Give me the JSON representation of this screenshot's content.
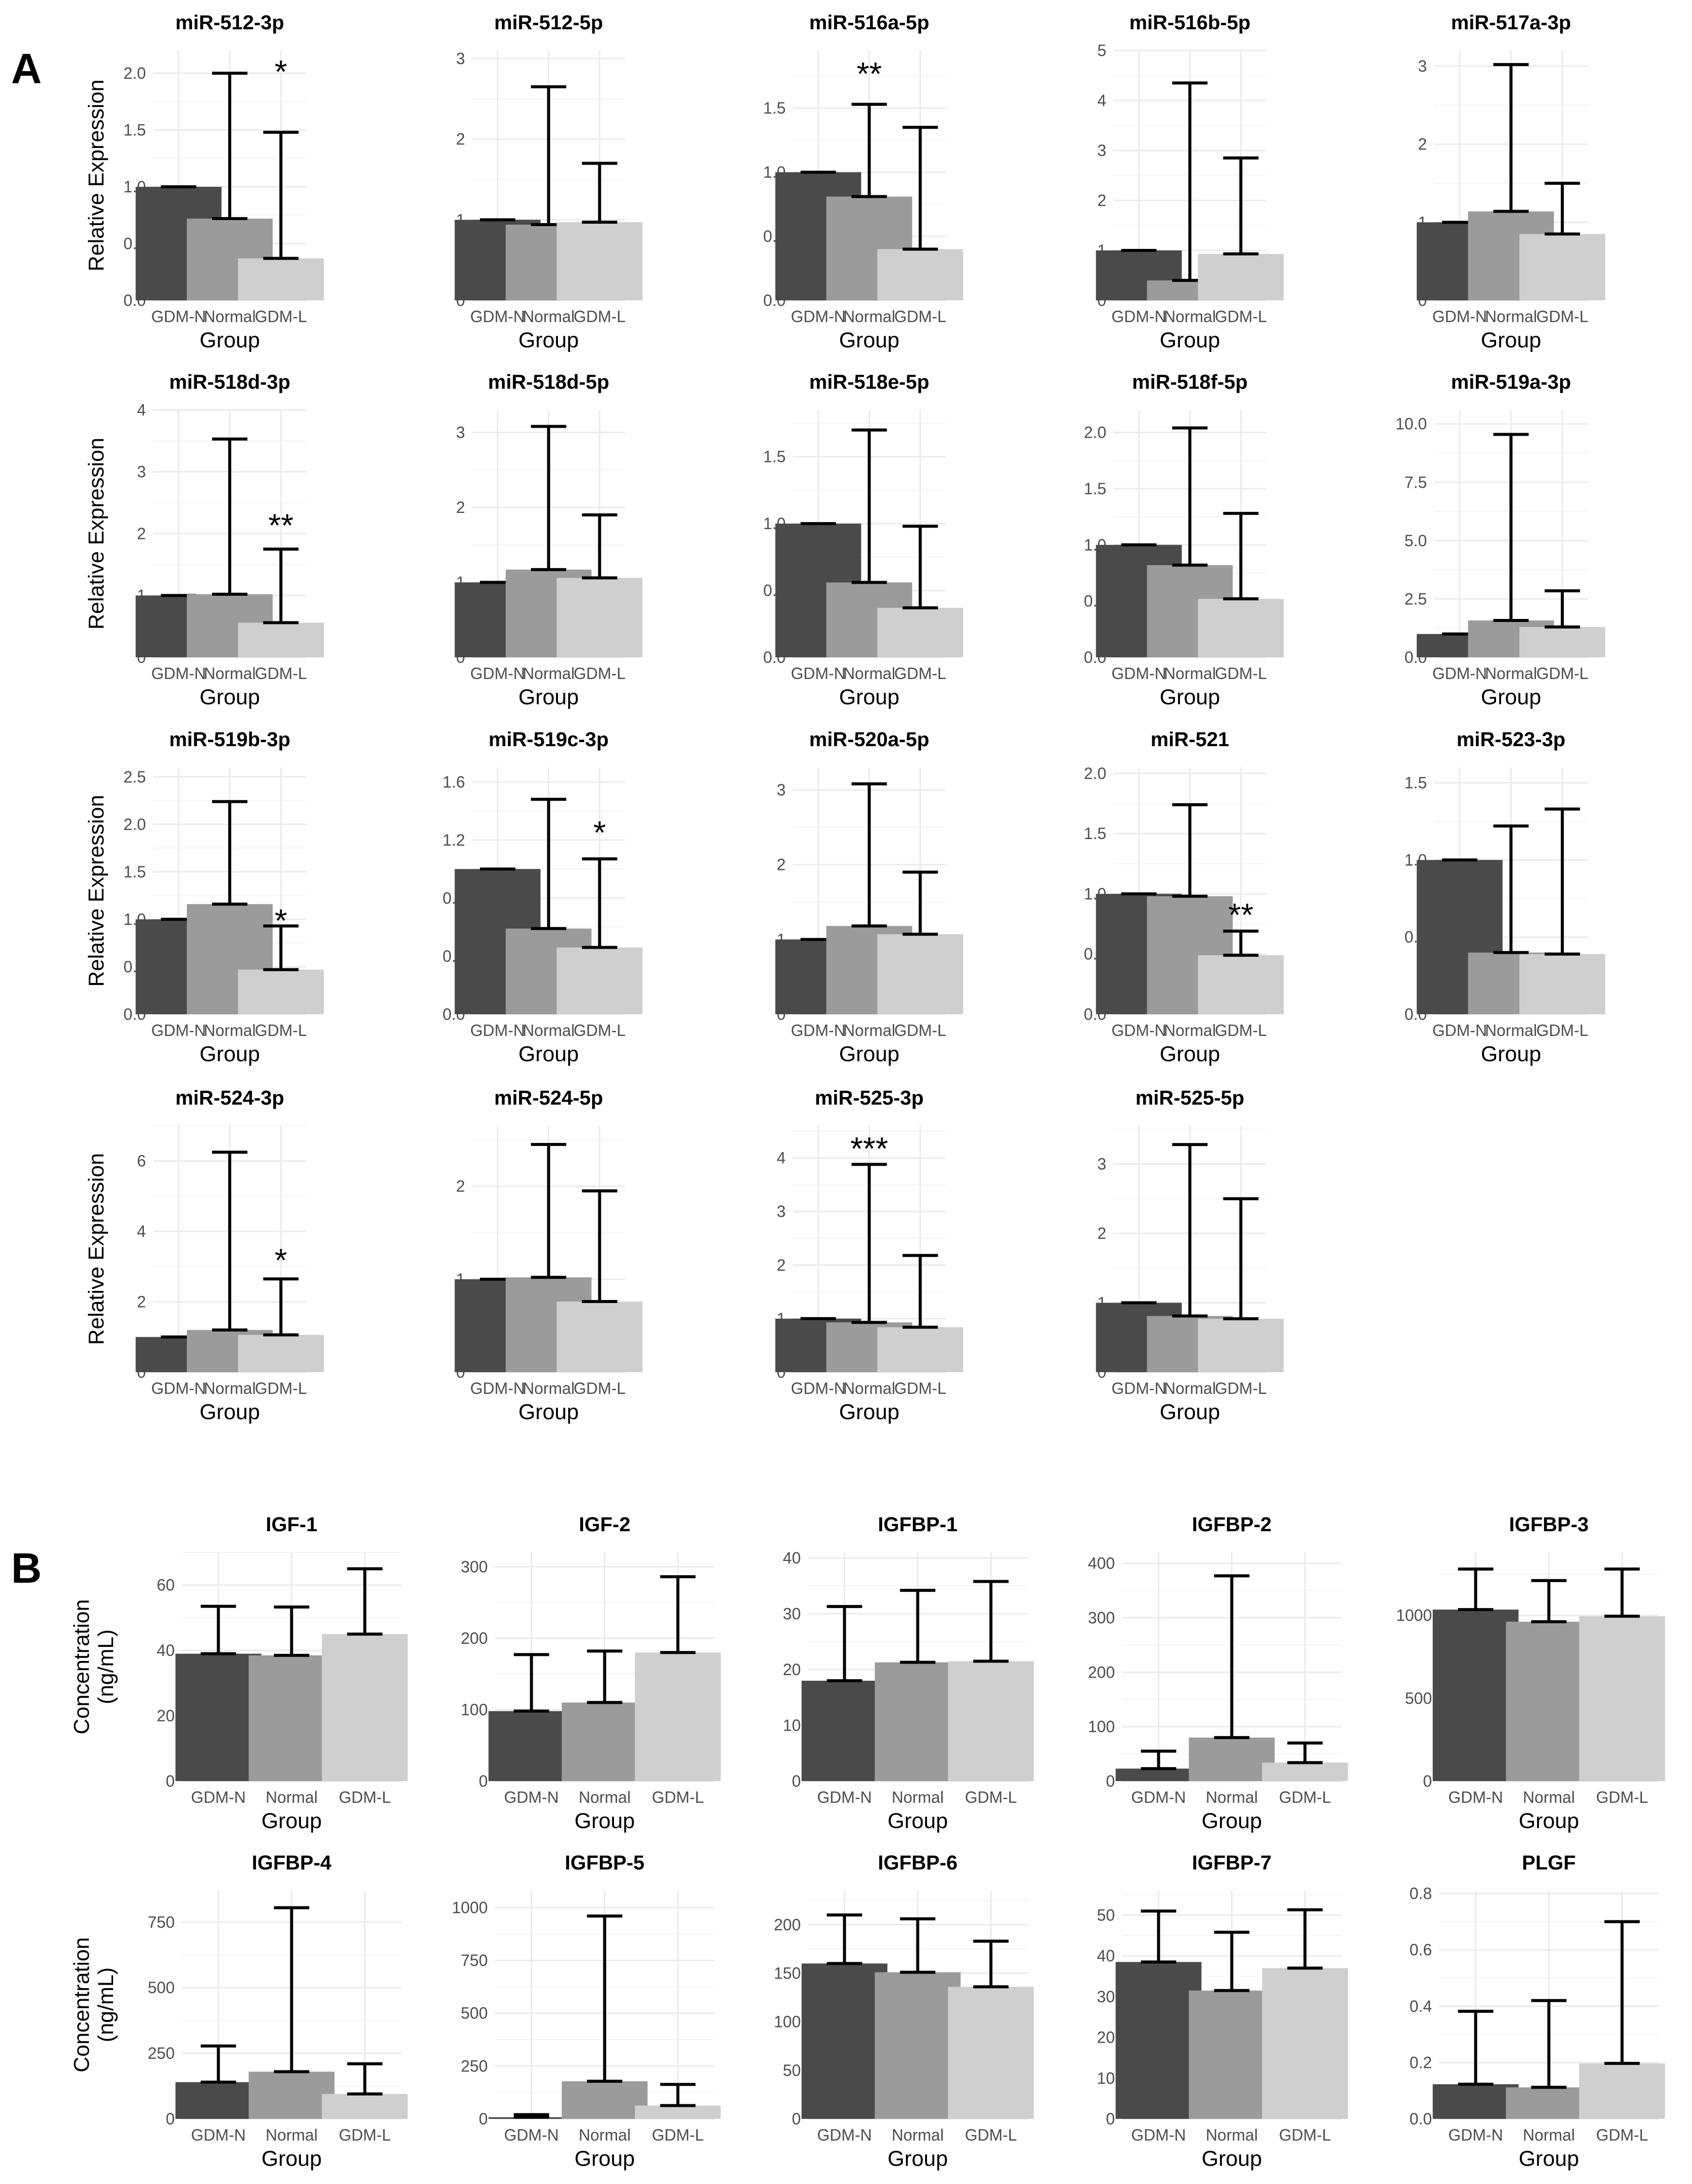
{
  "panel_labels": [
    "A",
    "B"
  ],
  "chart_data": [
    {
      "type": "bar",
      "panel": "A",
      "title": "miR-512-3p",
      "categories": [
        "GDM-N",
        "Normal",
        "GDM-L"
      ],
      "values": [
        1.0,
        0.72,
        0.37
      ],
      "error_upper": [
        1.0,
        2.0,
        1.48
      ],
      "ylim": [
        0,
        2.2
      ],
      "yticks": [
        "0.0",
        "0.5",
        "1.0",
        "1.5",
        "2.0"
      ],
      "xlabel": "Group",
      "ylabel": "Relative Expression",
      "annotations": [
        {
          "category": "GDM-L",
          "text": "*",
          "y": 2.05
        }
      ]
    },
    {
      "type": "bar",
      "panel": "A",
      "title": "miR-512-5p",
      "categories": [
        "GDM-N",
        "Normal",
        "GDM-L"
      ],
      "values": [
        1.0,
        0.94,
        0.97
      ],
      "error_upper": [
        1.0,
        2.65,
        1.7
      ],
      "ylim": [
        0,
        3.1
      ],
      "yticks": [
        "0",
        "1",
        "2",
        "3"
      ],
      "xlabel": "Group",
      "ylabel": "",
      "annotations": []
    },
    {
      "type": "bar",
      "panel": "A",
      "title": "miR-516a-5p",
      "categories": [
        "GDM-N",
        "Normal",
        "GDM-L"
      ],
      "values": [
        1.0,
        0.81,
        0.4
      ],
      "error_upper": [
        1.0,
        1.53,
        1.35
      ],
      "ylim": [
        0,
        1.95
      ],
      "yticks": [
        "0.0",
        "0.5",
        "1.0",
        "1.5"
      ],
      "xlabel": "Group",
      "ylabel": "",
      "annotations": [
        {
          "category": "Normal",
          "text": "**",
          "y": 1.8
        }
      ]
    },
    {
      "type": "bar",
      "panel": "A",
      "title": "miR-516b-5p",
      "categories": [
        "GDM-N",
        "Normal",
        "GDM-L"
      ],
      "values": [
        1.0,
        0.4,
        0.93
      ],
      "error_upper": [
        1.0,
        4.35,
        2.85
      ],
      "ylim": [
        0,
        5.0
      ],
      "yticks": [
        "0",
        "1",
        "2",
        "3",
        "4",
        "5"
      ],
      "xlabel": "Group",
      "ylabel": "",
      "annotations": []
    },
    {
      "type": "bar",
      "panel": "A",
      "title": "miR-517a-3p",
      "categories": [
        "GDM-N",
        "Normal",
        "GDM-L"
      ],
      "values": [
        1.0,
        1.14,
        0.85
      ],
      "error_upper": [
        1.0,
        3.02,
        1.5
      ],
      "ylim": [
        0,
        3.2
      ],
      "yticks": [
        "0",
        "1",
        "2",
        "3"
      ],
      "xlabel": "Group",
      "ylabel": "",
      "annotations": []
    },
    {
      "type": "bar",
      "panel": "A",
      "title": "miR-518d-3p",
      "categories": [
        "GDM-N",
        "Normal",
        "GDM-L"
      ],
      "values": [
        1.0,
        1.02,
        0.56
      ],
      "error_upper": [
        1.0,
        3.53,
        1.75
      ],
      "ylim": [
        0,
        4.0
      ],
      "yticks": [
        "0",
        "1",
        "2",
        "3",
        "4"
      ],
      "xlabel": "Group",
      "ylabel": "Relative Expression",
      "annotations": [
        {
          "category": "GDM-L",
          "text": "**",
          "y": 2.2
        }
      ]
    },
    {
      "type": "bar",
      "panel": "A",
      "title": "miR-518d-5p",
      "categories": [
        "GDM-N",
        "Normal",
        "GDM-L"
      ],
      "values": [
        1.0,
        1.17,
        1.06
      ],
      "error_upper": [
        1.0,
        3.08,
        1.9
      ],
      "ylim": [
        0,
        3.3
      ],
      "yticks": [
        "0",
        "1",
        "2",
        "3"
      ],
      "xlabel": "Group",
      "ylabel": "",
      "annotations": []
    },
    {
      "type": "bar",
      "panel": "A",
      "title": "miR-518e-5p",
      "categories": [
        "GDM-N",
        "Normal",
        "GDM-L"
      ],
      "values": [
        1.0,
        0.56,
        0.37
      ],
      "error_upper": [
        1.0,
        1.7,
        0.98
      ],
      "ylim": [
        0,
        1.85
      ],
      "yticks": [
        "0.0",
        "0.5",
        "1.0",
        "1.5"
      ],
      "xlabel": "Group",
      "ylabel": "",
      "annotations": []
    },
    {
      "type": "bar",
      "panel": "A",
      "title": "miR-518f-5p",
      "categories": [
        "GDM-N",
        "Normal",
        "GDM-L"
      ],
      "values": [
        1.0,
        0.82,
        0.52
      ],
      "error_upper": [
        1.0,
        2.04,
        1.28
      ],
      "ylim": [
        0,
        2.2
      ],
      "yticks": [
        "0.0",
        "0.5",
        "1.0",
        "1.5",
        "2.0"
      ],
      "xlabel": "Group",
      "ylabel": "",
      "annotations": []
    },
    {
      "type": "bar",
      "panel": "A",
      "title": "miR-519a-3p",
      "categories": [
        "GDM-N",
        "Normal",
        "GDM-L"
      ],
      "values": [
        1.0,
        1.58,
        1.3
      ],
      "error_upper": [
        1.0,
        9.55,
        2.85
      ],
      "ylim": [
        0,
        10.6
      ],
      "yticks": [
        "0.0",
        "2.5",
        "5.0",
        "7.5",
        "10.0"
      ],
      "xlabel": "Group",
      "ylabel": "",
      "annotations": []
    },
    {
      "type": "bar",
      "panel": "A",
      "title": "miR-519b-3p",
      "categories": [
        "GDM-N",
        "Normal",
        "GDM-L"
      ],
      "values": [
        1.0,
        1.16,
        0.47
      ],
      "error_upper": [
        1.0,
        2.24,
        0.93
      ],
      "ylim": [
        0,
        2.6
      ],
      "yticks": [
        "0.0",
        "0.5",
        "1.0",
        "1.5",
        "2.0",
        "2.5"
      ],
      "xlabel": "Group",
      "ylabel": "Relative Expression",
      "annotations": [
        {
          "category": "GDM-L",
          "text": "*",
          "y": 1.03
        }
      ]
    },
    {
      "type": "bar",
      "panel": "A",
      "title": "miR-519c-3p",
      "categories": [
        "GDM-N",
        "Normal",
        "GDM-L"
      ],
      "values": [
        1.0,
        0.59,
        0.46
      ],
      "error_upper": [
        1.0,
        1.48,
        1.07
      ],
      "ylim": [
        0,
        1.7
      ],
      "yticks": [
        "0.0",
        "0.4",
        "0.8",
        "1.2",
        "1.6"
      ],
      "xlabel": "Group",
      "ylabel": "",
      "annotations": [
        {
          "category": "GDM-L",
          "text": "*",
          "y": 1.28
        }
      ]
    },
    {
      "type": "bar",
      "panel": "A",
      "title": "miR-520a-5p",
      "categories": [
        "GDM-N",
        "Normal",
        "GDM-L"
      ],
      "values": [
        1.0,
        1.18,
        1.07
      ],
      "error_upper": [
        1.0,
        3.08,
        1.9
      ],
      "ylim": [
        0,
        3.3
      ],
      "yticks": [
        "0",
        "1",
        "2",
        "3"
      ],
      "xlabel": "Group",
      "ylabel": "",
      "annotations": []
    },
    {
      "type": "bar",
      "panel": "A",
      "title": "miR-521",
      "categories": [
        "GDM-N",
        "Normal",
        "GDM-L"
      ],
      "values": [
        1.0,
        0.98,
        0.49
      ],
      "error_upper": [
        1.0,
        1.74,
        0.69
      ],
      "ylim": [
        0,
        2.05
      ],
      "yticks": [
        "0.0",
        "0.5",
        "1.0",
        "1.5",
        "2.0"
      ],
      "xlabel": "Group",
      "ylabel": "",
      "annotations": [
        {
          "category": "GDM-L",
          "text": "**",
          "y": 0.86
        }
      ]
    },
    {
      "type": "bar",
      "panel": "A",
      "title": "miR-523-3p",
      "categories": [
        "GDM-N",
        "Normal",
        "GDM-L"
      ],
      "values": [
        1.0,
        0.4,
        0.39
      ],
      "error_upper": [
        1.0,
        1.22,
        1.33
      ],
      "ylim": [
        0,
        1.6
      ],
      "yticks": [
        "0.0",
        "0.5",
        "1.0",
        "1.5"
      ],
      "xlabel": "Group",
      "ylabel": "",
      "annotations": []
    },
    {
      "type": "bar",
      "panel": "A",
      "title": "miR-524-3p",
      "categories": [
        "GDM-N",
        "Normal",
        "GDM-L"
      ],
      "values": [
        1.0,
        1.2,
        1.06
      ],
      "error_upper": [
        1.0,
        6.25,
        2.65
      ],
      "ylim": [
        0,
        7.0
      ],
      "yticks": [
        "0",
        "2",
        "4",
        "6"
      ],
      "xlabel": "Group",
      "ylabel": "Relative Expression",
      "annotations": [
        {
          "category": "GDM-L",
          "text": "*",
          "y": 3.3
        }
      ]
    },
    {
      "type": "bar",
      "panel": "A",
      "title": "miR-524-5p",
      "categories": [
        "GDM-N",
        "Normal",
        "GDM-L"
      ],
      "values": [
        1.0,
        1.02,
        0.76
      ],
      "error_upper": [
        1.0,
        2.45,
        1.95
      ],
      "ylim": [
        0,
        2.65
      ],
      "yticks": [
        "0",
        "1",
        "2"
      ],
      "xlabel": "Group",
      "ylabel": "",
      "annotations": []
    },
    {
      "type": "bar",
      "panel": "A",
      "title": "miR-525-3p",
      "categories": [
        "GDM-N",
        "Normal",
        "GDM-L"
      ],
      "values": [
        1.0,
        0.93,
        0.84
      ],
      "error_upper": [
        1.0,
        3.88,
        2.18
      ],
      "ylim": [
        0,
        4.6
      ],
      "yticks": [
        "0",
        "1",
        "2",
        "3",
        "4"
      ],
      "xlabel": "Group",
      "ylabel": "",
      "annotations": [
        {
          "category": "Normal",
          "text": "***",
          "y": 4.25
        }
      ]
    },
    {
      "type": "bar",
      "panel": "A",
      "title": "miR-525-5p",
      "categories": [
        "GDM-N",
        "Normal",
        "GDM-L"
      ],
      "values": [
        1.0,
        0.81,
        0.77
      ],
      "error_upper": [
        1.0,
        3.28,
        2.5
      ],
      "ylim": [
        0,
        3.55
      ],
      "yticks": [
        "0",
        "1",
        "2",
        "3"
      ],
      "xlabel": "Group",
      "ylabel": "",
      "annotations": []
    },
    {
      "type": "bar",
      "panel": "B",
      "title": "IGF-1",
      "categories": [
        "GDM-N",
        "Normal",
        "GDM-L"
      ],
      "values": [
        39,
        38.5,
        45
      ],
      "error_upper": [
        53.5,
        53.3,
        65
      ],
      "ylim": [
        0,
        70
      ],
      "yticks": [
        "0",
        "20",
        "40",
        "60"
      ],
      "xlabel": "Group",
      "ylabel": "Concentration\n(ng/mL)",
      "annotations": []
    },
    {
      "type": "bar",
      "panel": "B",
      "title": "IGF-2",
      "categories": [
        "GDM-N",
        "Normal",
        "GDM-L"
      ],
      "values": [
        98,
        110,
        180
      ],
      "error_upper": [
        177,
        182,
        286
      ],
      "ylim": [
        0,
        320
      ],
      "yticks": [
        "0",
        "100",
        "200",
        "300"
      ],
      "xlabel": "Group",
      "ylabel": "",
      "annotations": []
    },
    {
      "type": "bar",
      "panel": "B",
      "title": "IGFBP-1",
      "categories": [
        "GDM-N",
        "Normal",
        "GDM-L"
      ],
      "values": [
        18,
        21.3,
        21.5
      ],
      "error_upper": [
        31.3,
        34.2,
        35.8
      ],
      "ylim": [
        0,
        41
      ],
      "yticks": [
        "0",
        "10",
        "20",
        "30",
        "40"
      ],
      "xlabel": "Group",
      "ylabel": "",
      "annotations": []
    },
    {
      "type": "bar",
      "panel": "B",
      "title": "IGFBP-2",
      "categories": [
        "GDM-N",
        "Normal",
        "GDM-L"
      ],
      "values": [
        23,
        80,
        34
      ],
      "error_upper": [
        55,
        377,
        70
      ],
      "ylim": [
        0,
        420
      ],
      "yticks": [
        "0",
        "100",
        "200",
        "300",
        "400"
      ],
      "xlabel": "Group",
      "ylabel": "",
      "annotations": []
    },
    {
      "type": "bar",
      "panel": "B",
      "title": "IGFBP-3",
      "categories": [
        "GDM-N",
        "Normal",
        "GDM-L"
      ],
      "values": [
        1035,
        962,
        995
      ],
      "error_upper": [
        1280,
        1210,
        1280
      ],
      "ylim": [
        0,
        1380
      ],
      "yticks": [
        "0",
        "500",
        "1000"
      ],
      "xlabel": "Group",
      "ylabel": "",
      "annotations": []
    },
    {
      "type": "bar",
      "panel": "B",
      "title": "IGFBP-4",
      "categories": [
        "GDM-N",
        "Normal",
        "GDM-L"
      ],
      "values": [
        140,
        180,
        95
      ],
      "error_upper": [
        278,
        805,
        210
      ],
      "ylim": [
        0,
        870
      ],
      "yticks": [
        "0",
        "250",
        "500",
        "750"
      ],
      "xlabel": "Group",
      "ylabel": "Concentration\n(ng/mL)",
      "annotations": []
    },
    {
      "type": "bar",
      "panel": "B",
      "title": "IGFBP-5",
      "categories": [
        "GDM-N",
        "Normal",
        "GDM-L"
      ],
      "values": [
        8,
        178,
        63
      ],
      "error_upper": [
        20,
        960,
        163
      ],
      "ylim": [
        0,
        1080
      ],
      "yticks": [
        "0",
        "250",
        "500",
        "750",
        "1000"
      ],
      "xlabel": "Group",
      "ylabel": "",
      "annotations": []
    },
    {
      "type": "bar",
      "panel": "B",
      "title": "IGFBP-6",
      "categories": [
        "GDM-N",
        "Normal",
        "GDM-L"
      ],
      "values": [
        160,
        151,
        136
      ],
      "error_upper": [
        210,
        206,
        183
      ],
      "ylim": [
        0,
        235
      ],
      "yticks": [
        "0",
        "50",
        "100",
        "150",
        "200"
      ],
      "xlabel": "Group",
      "ylabel": "",
      "annotations": []
    },
    {
      "type": "bar",
      "panel": "B",
      "title": "IGFBP-7",
      "categories": [
        "GDM-N",
        "Normal",
        "GDM-L"
      ],
      "values": [
        38.5,
        31.5,
        37
      ],
      "error_upper": [
        51,
        45.8,
        51.3
      ],
      "ylim": [
        0,
        56
      ],
      "yticks": [
        "0",
        "10",
        "20",
        "30",
        "40",
        "50"
      ],
      "xlabel": "Group",
      "ylabel": "",
      "annotations": []
    },
    {
      "type": "bar",
      "panel": "B",
      "title": "PLGF",
      "categories": [
        "GDM-N",
        "Normal",
        "GDM-L"
      ],
      "values": [
        0.123,
        0.112,
        0.197
      ],
      "error_upper": [
        0.382,
        0.42,
        0.7
      ],
      "ylim": [
        0,
        0.81
      ],
      "yticks": [
        "0.0",
        "0.2",
        "0.4",
        "0.6",
        "0.8"
      ],
      "xlabel": "Group",
      "ylabel": "",
      "annotations": []
    }
  ],
  "colors": {
    "GDM-N": "#4a4a4a",
    "Normal": "#9b9b9b",
    "GDM-L": "#cfcfcf"
  }
}
